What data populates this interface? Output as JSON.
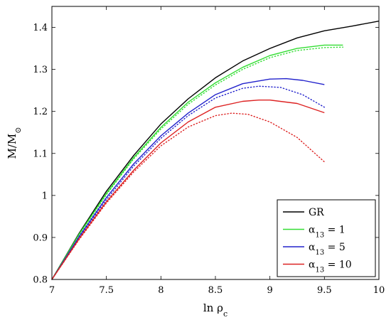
{
  "chart_data": {
    "type": "line",
    "xlabel": "ln ρ",
    "xlabel_sub": "c",
    "ylabel": "M/M",
    "ylabel_sub": "⊙",
    "xlim": [
      7,
      10
    ],
    "ylim": [
      0.8,
      1.45
    ],
    "xticks": [
      7,
      7.5,
      8,
      8.5,
      9,
      9.5,
      10
    ],
    "xtick_labels": [
      "7",
      "7.5",
      "8",
      "8.5",
      "9",
      "9.5",
      "10"
    ],
    "yticks": [
      0.8,
      0.9,
      1.0,
      1.1,
      1.2,
      1.3,
      1.4
    ],
    "ytick_labels": [
      "0.8",
      "0.9",
      "1",
      "1.1",
      "1.2",
      "1.3",
      "1.4"
    ],
    "grid": false,
    "legend_position": "bottom-right",
    "series": [
      {
        "name": "GR",
        "legend_label": {
          "base": "GR",
          "sub": "",
          "suffix": ""
        },
        "color": "#000000",
        "style": "solid",
        "x": [
          7.0,
          7.25,
          7.5,
          7.75,
          8.0,
          8.25,
          8.5,
          8.75,
          9.0,
          9.25,
          9.5,
          9.75,
          10.0
        ],
        "y": [
          0.8,
          0.91,
          1.01,
          1.095,
          1.17,
          1.23,
          1.28,
          1.32,
          1.35,
          1.375,
          1.392,
          1.403,
          1.415
        ]
      },
      {
        "name": "α13 = 1",
        "legend_label": {
          "base": "α",
          "sub": "13",
          "suffix": " = 1"
        },
        "color": "#33dd33",
        "style": "solid",
        "x": [
          7.0,
          7.25,
          7.5,
          7.75,
          8.0,
          8.25,
          8.5,
          8.75,
          9.0,
          9.25,
          9.5,
          9.67
        ],
        "y": [
          0.8,
          0.908,
          1.005,
          1.09,
          1.162,
          1.222,
          1.268,
          1.305,
          1.333,
          1.35,
          1.358,
          1.358
        ]
      },
      {
        "name": "α13 = 1 (dotted)",
        "legend_label": {
          "base": "",
          "sub": "",
          "suffix": ""
        },
        "color": "#33dd33",
        "style": "dotted",
        "x": [
          7.0,
          7.25,
          7.5,
          7.75,
          8.0,
          8.25,
          8.5,
          8.75,
          9.0,
          9.25,
          9.5,
          9.67
        ],
        "y": [
          0.8,
          0.906,
          1.002,
          1.087,
          1.158,
          1.217,
          1.263,
          1.3,
          1.328,
          1.345,
          1.352,
          1.353
        ]
      },
      {
        "name": "α13 = 5",
        "legend_label": {
          "base": "α",
          "sub": "13",
          "suffix": " = 5"
        },
        "color": "#2222cc",
        "style": "solid",
        "x": [
          7.0,
          7.25,
          7.5,
          7.75,
          8.0,
          8.25,
          8.5,
          8.75,
          9.0,
          9.15,
          9.3,
          9.5
        ],
        "y": [
          0.8,
          0.902,
          0.995,
          1.075,
          1.142,
          1.196,
          1.24,
          1.266,
          1.277,
          1.278,
          1.274,
          1.264
        ]
      },
      {
        "name": "α13 = 5 (dotted)",
        "legend_label": {
          "base": "",
          "sub": "",
          "suffix": ""
        },
        "color": "#2222cc",
        "style": "dotted",
        "x": [
          7.0,
          7.25,
          7.5,
          7.75,
          8.0,
          8.25,
          8.5,
          8.75,
          8.9,
          9.1,
          9.3,
          9.5
        ],
        "y": [
          0.8,
          0.9,
          0.99,
          1.07,
          1.136,
          1.19,
          1.232,
          1.255,
          1.26,
          1.257,
          1.24,
          1.21
        ]
      },
      {
        "name": "α13 = 10",
        "legend_label": {
          "base": "α",
          "sub": "13",
          "suffix": " = 10"
        },
        "color": "#dd2222",
        "style": "solid",
        "x": [
          7.0,
          7.25,
          7.5,
          7.75,
          8.0,
          8.25,
          8.5,
          8.75,
          8.9,
          9.0,
          9.25,
          9.5
        ],
        "y": [
          0.8,
          0.897,
          0.985,
          1.06,
          1.125,
          1.175,
          1.21,
          1.224,
          1.227,
          1.227,
          1.219,
          1.197
        ]
      },
      {
        "name": "α13 = 10 (dotted)",
        "legend_label": {
          "base": "",
          "sub": "",
          "suffix": ""
        },
        "color": "#dd2222",
        "style": "dotted",
        "x": [
          7.0,
          7.25,
          7.5,
          7.75,
          8.0,
          8.25,
          8.5,
          8.65,
          8.8,
          9.0,
          9.25,
          9.5
        ],
        "y": [
          0.8,
          0.895,
          0.982,
          1.056,
          1.118,
          1.163,
          1.19,
          1.196,
          1.193,
          1.175,
          1.138,
          1.08
        ]
      }
    ]
  }
}
